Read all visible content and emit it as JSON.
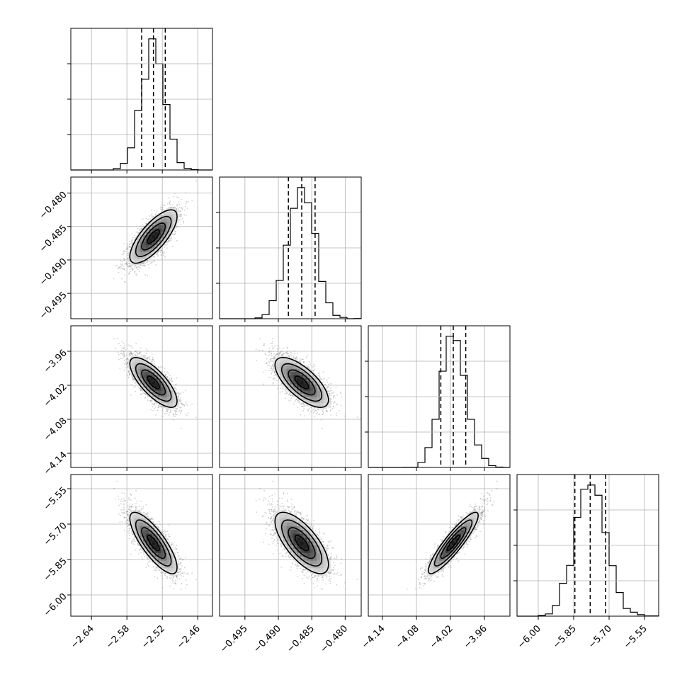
{
  "chart_data": {
    "type": "corner",
    "grid": true,
    "parameters": [
      {
        "range": [
          -2.675,
          -2.435
        ],
        "ticks": [
          -2.64,
          -2.58,
          -2.52,
          -2.46
        ],
        "tick_labels": [
          "−2.64",
          "−2.58",
          "−2.52",
          "−2.46"
        ],
        "mean": -2.535,
        "sigma": 0.02,
        "quantiles": [
          -2.555,
          -2.535,
          -2.515
        ]
      },
      {
        "range": [
          -0.4988,
          -0.4776
        ],
        "ticks": [
          -0.495,
          -0.49,
          -0.485,
          -0.48
        ],
        "tick_labels": [
          "−0.495",
          "−0.490",
          "−0.485",
          "−0.480"
        ],
        "mean": -0.4865,
        "sigma": 0.002,
        "quantiles": [
          -0.4885,
          -0.4865,
          -0.4845
        ]
      },
      {
        "range": [
          -4.165,
          -3.915
        ],
        "ticks": [
          -4.14,
          -4.08,
          -4.02,
          -3.96
        ],
        "tick_labels": [
          "−4.14",
          "−4.08",
          "−4.02",
          "−3.96"
        ],
        "mean": -4.015,
        "sigma": 0.022,
        "quantiles": [
          -4.037,
          -4.015,
          -3.993
        ]
      },
      {
        "range": [
          -6.09,
          -5.49
        ],
        "ticks": [
          -6.0,
          -5.85,
          -5.7,
          -5.55
        ],
        "tick_labels": [
          "−6.00",
          "−5.85",
          "−5.70",
          "−5.55"
        ],
        "mean": -5.78,
        "sigma": 0.065,
        "quantiles": [
          -5.845,
          -5.78,
          -5.715
        ]
      }
    ],
    "correlations": [
      [
        1.0,
        0.75,
        -0.75,
        -0.8
      ],
      [
        0.75,
        1.0,
        -0.7,
        -0.7
      ],
      [
        -0.75,
        -0.7,
        1.0,
        0.9
      ],
      [
        -0.8,
        -0.7,
        0.9,
        1.0
      ]
    ]
  }
}
